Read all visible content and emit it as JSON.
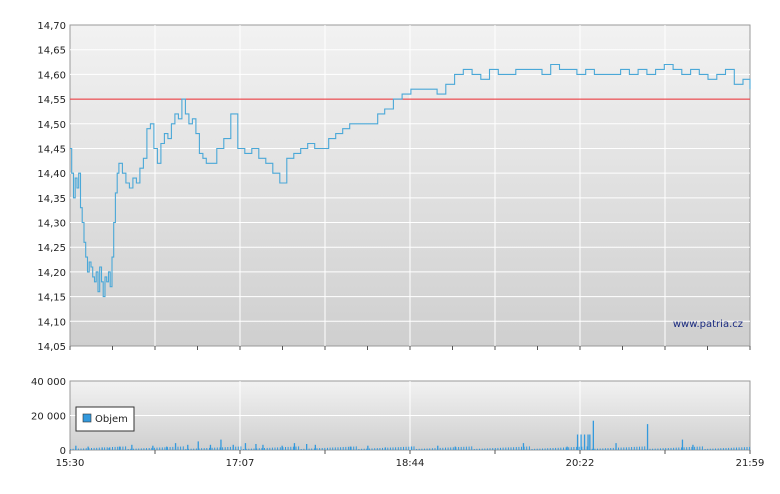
{
  "watermark": "www.patria.cz",
  "chart_data": [
    {
      "type": "line",
      "name_hint": "price",
      "x_ticks": [
        "15:30",
        "17:07",
        "18:44",
        "20:22",
        "21:59"
      ],
      "y_ticks": [
        "14,05",
        "14,10",
        "14,15",
        "14,20",
        "14,25",
        "14,30",
        "14,35",
        "14,40",
        "14,45",
        "14,50",
        "14,55",
        "14,60",
        "14,65",
        "14,70"
      ],
      "ylim": [
        14.05,
        14.7
      ],
      "xlim_minutes": [
        0,
        389
      ],
      "reference_line": 14.55,
      "grid": true,
      "colors": {
        "line": "#4aa8d8",
        "reference": "#e8262a",
        "grid": "#ffffff"
      },
      "series": [
        {
          "x": [
            0,
            1,
            2,
            3,
            4,
            5,
            6,
            7,
            8,
            9,
            10,
            11,
            12,
            13,
            14,
            15,
            16,
            17,
            18,
            19,
            20,
            21,
            22,
            23,
            24,
            25,
            26,
            27,
            28,
            29,
            30,
            32,
            34,
            36,
            38,
            40,
            42,
            44,
            46,
            48,
            50,
            52,
            54,
            56,
            58,
            60,
            62,
            64,
            66,
            68,
            70,
            72,
            74,
            76,
            78,
            80,
            84,
            88,
            92,
            96,
            100,
            104,
            108,
            112,
            116,
            120,
            124,
            128,
            132,
            136,
            140,
            144,
            148,
            152,
            156,
            160,
            164,
            168,
            172,
            176,
            180,
            185,
            190,
            195,
            200,
            205,
            210,
            215,
            220,
            225,
            230,
            235,
            240,
            245,
            250,
            255,
            260,
            265,
            270,
            275,
            280,
            285,
            290,
            295,
            300,
            305,
            310,
            315,
            320,
            325,
            330,
            335,
            340,
            345,
            350,
            355,
            360,
            365,
            370,
            375,
            380,
            385,
            389
          ],
          "y": [
            14.45,
            14.4,
            14.35,
            14.39,
            14.37,
            14.4,
            14.33,
            14.3,
            14.26,
            14.23,
            14.2,
            14.22,
            14.21,
            14.19,
            14.18,
            14.2,
            14.16,
            14.21,
            14.18,
            14.15,
            14.19,
            14.18,
            14.2,
            14.17,
            14.23,
            14.3,
            14.36,
            14.4,
            14.42,
            14.42,
            14.4,
            14.38,
            14.37,
            14.39,
            14.38,
            14.41,
            14.43,
            14.49,
            14.5,
            14.45,
            14.42,
            14.46,
            14.48,
            14.47,
            14.5,
            14.52,
            14.51,
            14.55,
            14.52,
            14.5,
            14.51,
            14.48,
            14.44,
            14.43,
            14.42,
            14.42,
            14.45,
            14.47,
            14.52,
            14.45,
            14.44,
            14.45,
            14.43,
            14.42,
            14.4,
            14.38,
            14.43,
            14.44,
            14.45,
            14.46,
            14.45,
            14.45,
            14.47,
            14.48,
            14.49,
            14.5,
            14.5,
            14.5,
            14.5,
            14.52,
            14.53,
            14.55,
            14.56,
            14.57,
            14.57,
            14.57,
            14.56,
            14.58,
            14.6,
            14.61,
            14.6,
            14.59,
            14.61,
            14.6,
            14.6,
            14.61,
            14.61,
            14.61,
            14.6,
            14.62,
            14.61,
            14.61,
            14.6,
            14.61,
            14.6,
            14.6,
            14.6,
            14.61,
            14.6,
            14.61,
            14.6,
            14.61,
            14.62,
            14.61,
            14.6,
            14.61,
            14.6,
            14.59,
            14.6,
            14.61,
            14.58,
            14.59,
            14.57
          ]
        }
      ]
    },
    {
      "type": "bar",
      "name_hint": "volume",
      "x_ticks": [
        "15:30",
        "17:07",
        "18:44",
        "20:22",
        "21:59"
      ],
      "y_ticks": [
        "0",
        "20 000",
        "40 000"
      ],
      "ylim": [
        0,
        40000
      ],
      "xlim_minutes": [
        0,
        389
      ],
      "grid": true,
      "legend": {
        "label": "Objem",
        "placement": "top-left"
      },
      "colors": {
        "bar": "#3399dd"
      },
      "series": [
        {
          "x": [
            3,
            10,
            18,
            22,
            28,
            35,
            47,
            55,
            60,
            67,
            73,
            80,
            86,
            93,
            100,
            106,
            110,
            121,
            128,
            135,
            140,
            160,
            170,
            180,
            195,
            210,
            220,
            259,
            284,
            290,
            292,
            294,
            296,
            297,
            299,
            312,
            330,
            350,
            356
          ],
          "values": [
            2500,
            2000,
            1500,
            1200,
            2000,
            3000,
            2500,
            2000,
            4000,
            3000,
            5000,
            3000,
            6000,
            3000,
            4000,
            3500,
            3000,
            2500,
            4000,
            3500,
            3000,
            2000,
            2500,
            1500,
            2000,
            2500,
            2000,
            4000,
            2000,
            9000,
            9000,
            9000,
            9000,
            9000,
            17000,
            4000,
            15000,
            6000,
            3000
          ]
        }
      ]
    }
  ]
}
